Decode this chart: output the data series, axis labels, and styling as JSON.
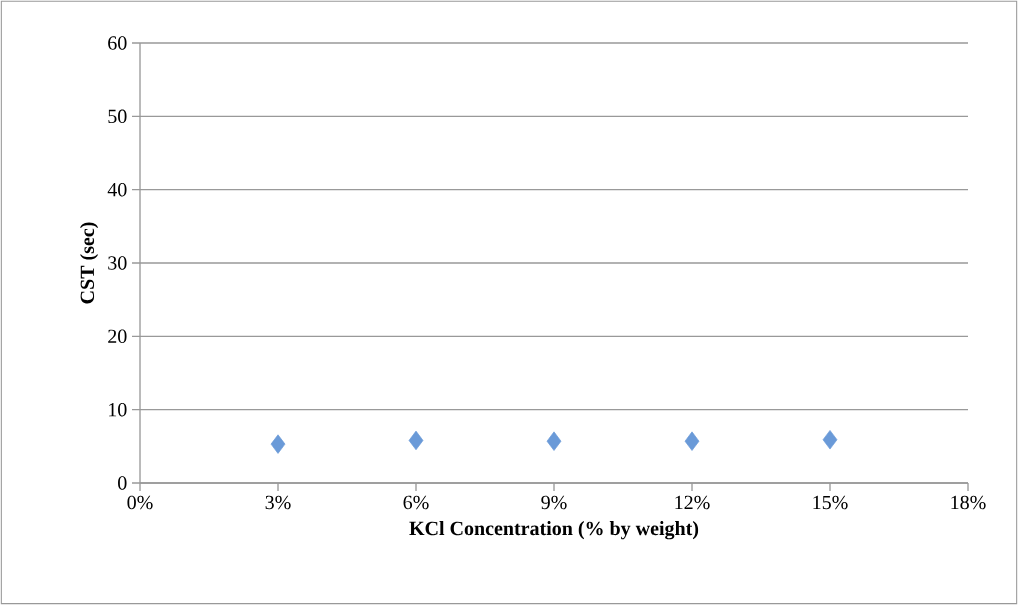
{
  "chart_data": {
    "type": "scatter",
    "xlabel": "KCl Concentration (% by weight)",
    "ylabel": "CST (sec)",
    "x": [
      3,
      6,
      9,
      12,
      15
    ],
    "series": [
      {
        "color": "#6a9ad8",
        "values": [
          5.3,
          5.8,
          5.7,
          5.7,
          5.9
        ]
      }
    ],
    "xlim": [
      0,
      18
    ],
    "xticks": [
      {
        "value": 0,
        "label": "0%"
      },
      {
        "value": 3,
        "label": "3%"
      },
      {
        "value": 6,
        "label": "6%"
      },
      {
        "value": 9,
        "label": "9%"
      },
      {
        "value": 12,
        "label": "12%"
      },
      {
        "value": 15,
        "label": "15%"
      },
      {
        "value": 18,
        "label": "18%"
      }
    ],
    "ylim": [
      0,
      60
    ],
    "yticks": [
      0,
      10,
      20,
      30,
      40,
      50,
      60
    ],
    "grid": "y",
    "marker": "diamond"
  }
}
